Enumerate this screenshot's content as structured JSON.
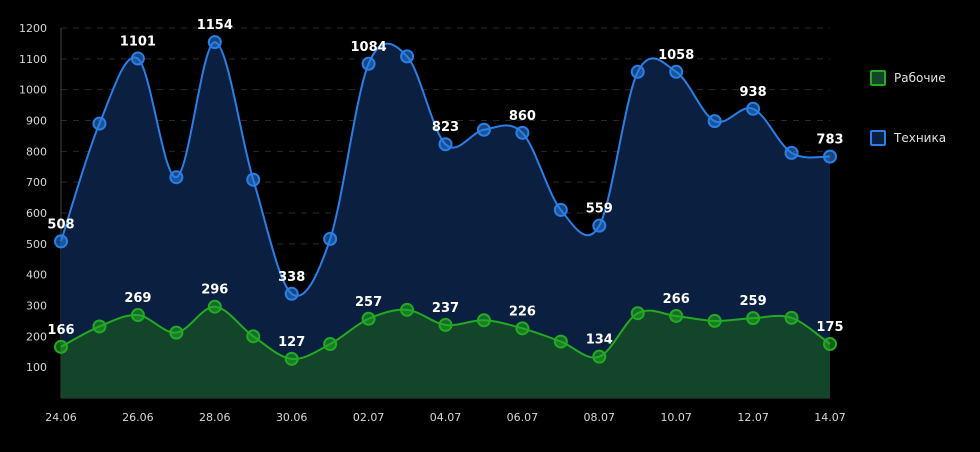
{
  "chart_data": {
    "type": "area",
    "x": [
      "24.06",
      "25.06",
      "26.06",
      "27.06",
      "28.06",
      "29.06",
      "30.06",
      "01.07",
      "02.07",
      "03.07",
      "04.07",
      "05.07",
      "06.07",
      "07.07",
      "08.07",
      "09.07",
      "10.07",
      "11.07",
      "12.07",
      "13.07",
      "14.07"
    ],
    "xticks": [
      "24.06",
      "26.06",
      "28.06",
      "30.06",
      "02.07",
      "04.07",
      "06.07",
      "08.07",
      "10.07",
      "12.07",
      "14.07"
    ],
    "yticks": [
      100,
      200,
      300,
      400,
      500,
      600,
      700,
      800,
      900,
      1000,
      1100,
      1200
    ],
    "ylim": [
      0,
      1200
    ],
    "grid": true,
    "legend_position": "right",
    "series": [
      {
        "name": "Рабочие",
        "color": "#22aa22",
        "fill": "#12452a",
        "values": [
          166,
          232,
          269,
          212,
          296,
          200,
          127,
          175,
          257,
          286,
          237,
          252,
          226,
          183,
          134,
          275,
          266,
          250,
          259,
          260,
          175
        ],
        "labels": [
          "166",
          "",
          "269",
          "",
          "296",
          "",
          "127",
          "",
          "257",
          "",
          "237",
          "",
          "226",
          "",
          "134",
          "",
          "266",
          "",
          "259",
          "",
          "175"
        ]
      },
      {
        "name": "Техника",
        "color": "#2a7fe6",
        "fill": "#0b1f40",
        "values": [
          508,
          890,
          1101,
          716,
          1154,
          708,
          338,
          516,
          1084,
          1108,
          823,
          870,
          860,
          610,
          559,
          1058,
          1058,
          898,
          938,
          795,
          783
        ],
        "labels": [
          "508",
          "",
          "1101",
          "",
          "1154",
          "",
          "338",
          "",
          "1084",
          "",
          "823",
          "",
          "860",
          "",
          "559",
          "",
          "1058",
          "",
          "938",
          "",
          "783"
        ]
      }
    ]
  }
}
